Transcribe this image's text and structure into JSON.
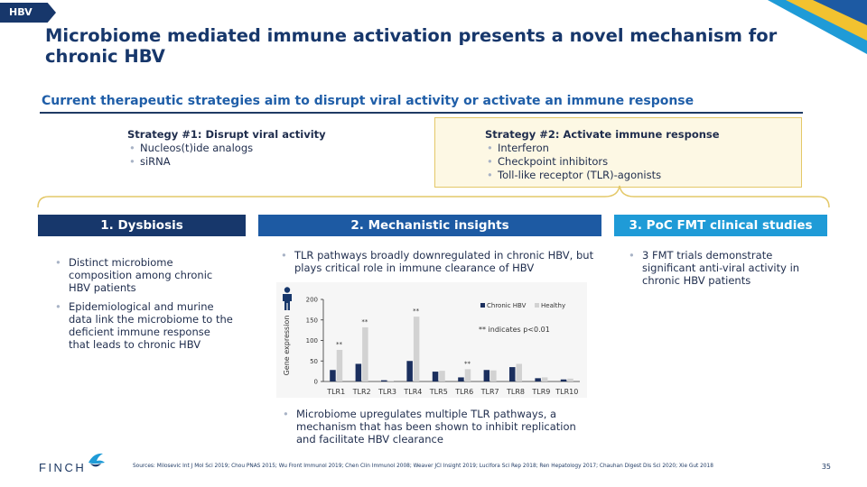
{
  "tag": "HBV",
  "title": "Microbiome mediated immune activation presents a novel mechanism for chronic HBV",
  "subheading": "Current therapeutic strategies aim to disrupt viral activity or activate an immune response",
  "strategy1": {
    "heading": "Strategy #1: Disrupt viral activity",
    "items": [
      "Nucleos(t)ide analogs",
      "siRNA"
    ]
  },
  "strategy2": {
    "heading": "Strategy #2: Activate immune response",
    "items": [
      "Interferon",
      "Checkpoint inhibitors",
      "Toll-like receptor (TLR)-agonists"
    ]
  },
  "banners": [
    "1. Dysbiosis",
    "2. Mechanistic insights",
    "3. PoC FMT clinical studies"
  ],
  "dysbiosis": [
    "Distinct microbiome composition among chronic HBV patients",
    "Epidemiological and murine data link the microbiome to the deficient immune response that leads to chronic HBV"
  ],
  "mechanistic_top": "TLR pathways broadly downregulated in chronic HBV, but plays critical role in immune clearance of HBV",
  "mechanistic_bottom": "Microbiome upregulates multiple TLR pathways, a mechanism that has been shown to inhibit replication and facilitate HBV clearance",
  "poc": "3 FMT trials demonstrate significant anti-viral activity in chronic HBV patients",
  "chart_note": "** indicates p<0.01",
  "chart_data": {
    "type": "bar",
    "categories": [
      "TLR1",
      "TLR2",
      "TLR3",
      "TLR4",
      "TLR5",
      "TLR6",
      "TLR7",
      "TLR8",
      "TLR9",
      "TLR10"
    ],
    "series": [
      {
        "name": "Chronic HBV",
        "values": [
          28,
          43,
          3,
          50,
          24,
          10,
          28,
          35,
          8,
          5
        ],
        "color": "#1b2f5e"
      },
      {
        "name": "Healthy",
        "values": [
          77,
          132,
          2,
          158,
          26,
          30,
          27,
          43,
          10,
          7
        ],
        "color": "#d2d2d2"
      }
    ],
    "significance": [
      "**",
      "**",
      "",
      "**",
      "",
      "**",
      "",
      "",
      "",
      ""
    ],
    "ylabel": "Gene expression",
    "ylim": [
      0,
      200
    ],
    "yticks": [
      0,
      50,
      100,
      150,
      200
    ],
    "legend": "top-right",
    "grid": false
  },
  "logo_text": "FINCH",
  "sources": "Sources: Milosevic Int J Mol Sci 2019; Chou PNAS 2015; Wu Front Immunol 2019; Chen Clin Immunol 2008; Weaver JCI Insight 2019; Lucifora Sci Rep 2018; Ren Hepatology 2017; Chauhan Digest Dis Sci 2020; Xie Gut 2018",
  "page_number": "35",
  "colors": {
    "navy": "#17376b",
    "mid_blue": "#1d5aa3",
    "light_blue": "#1f9bd7",
    "gold": "#e4c868",
    "chronic": "#1b2f5e",
    "healthy": "#d2d2d2"
  }
}
